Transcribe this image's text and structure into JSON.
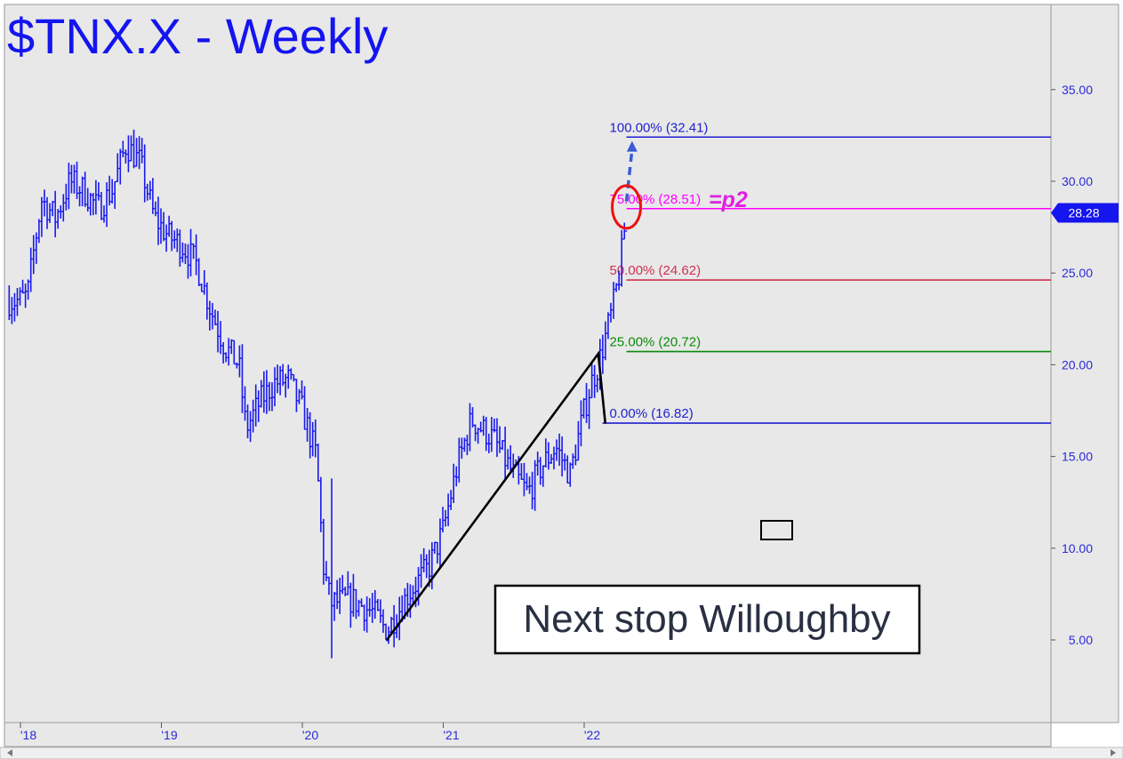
{
  "window": {
    "title": "$TNX.X - Weekly"
  },
  "colors": {
    "background": "#e8e8e8",
    "bars": "#1a1aee",
    "title": "#1414f0",
    "axis_text": "#2a2ad8",
    "fib_100": "#1f1fd0",
    "fib_75": "#ff00ff",
    "fib_50": "#d03050",
    "fib_25": "#0a8a0a",
    "fib_0": "#1f1fd0",
    "price_tag": "#1515ee",
    "annotation_red": "#ee1010",
    "arrow": "#3a5ad8",
    "p2": "#e020e0",
    "note_text": "#2a3042"
  },
  "chart_data": {
    "type": "ohlc-bar",
    "title": "$TNX.X - Weekly",
    "frequency": "weekly",
    "ylim": [
      0,
      39
    ],
    "y_ticks": [
      5,
      10,
      15,
      20,
      25,
      30,
      35
    ],
    "y_tick_labels": [
      "5.00",
      "10.00",
      "15.00",
      "20.00",
      "25.00",
      "30.00",
      "35.00"
    ],
    "x_ticks": [
      "'18",
      "'19",
      "'20",
      "'21",
      "'22"
    ],
    "last_price": 28.28,
    "last_price_label": "28.28",
    "series_anchors": [
      {
        "x": 2018.0,
        "y": 23.5
      },
      {
        "x": 2018.05,
        "y": 23.8
      },
      {
        "x": 2018.1,
        "y": 26.5
      },
      {
        "x": 2018.15,
        "y": 29.0
      },
      {
        "x": 2018.25,
        "y": 28.0
      },
      {
        "x": 2018.35,
        "y": 30.0
      },
      {
        "x": 2018.45,
        "y": 29.5
      },
      {
        "x": 2018.55,
        "y": 28.5
      },
      {
        "x": 2018.65,
        "y": 29.5
      },
      {
        "x": 2018.75,
        "y": 32.0
      },
      {
        "x": 2018.85,
        "y": 31.0
      },
      {
        "x": 2018.95,
        "y": 28.0
      },
      {
        "x": 2019.05,
        "y": 27.0
      },
      {
        "x": 2019.15,
        "y": 26.5
      },
      {
        "x": 2019.25,
        "y": 25.5
      },
      {
        "x": 2019.35,
        "y": 23.0
      },
      {
        "x": 2019.45,
        "y": 21.0
      },
      {
        "x": 2019.55,
        "y": 20.0
      },
      {
        "x": 2019.6,
        "y": 16.5
      },
      {
        "x": 2019.7,
        "y": 18.0
      },
      {
        "x": 2019.8,
        "y": 19.0
      },
      {
        "x": 2019.9,
        "y": 19.2
      },
      {
        "x": 2020.0,
        "y": 17.5
      },
      {
        "x": 2020.1,
        "y": 15.0
      },
      {
        "x": 2020.15,
        "y": 9.0
      },
      {
        "x": 2020.2,
        "y": 7.0
      },
      {
        "x": 2020.35,
        "y": 7.2
      },
      {
        "x": 2020.5,
        "y": 6.5
      },
      {
        "x": 2020.6,
        "y": 5.5
      },
      {
        "x": 2020.75,
        "y": 7.5
      },
      {
        "x": 2020.9,
        "y": 9.0
      },
      {
        "x": 2021.0,
        "y": 11.0
      },
      {
        "x": 2021.1,
        "y": 14.5
      },
      {
        "x": 2021.2,
        "y": 17.0
      },
      {
        "x": 2021.35,
        "y": 16.0
      },
      {
        "x": 2021.5,
        "y": 14.0
      },
      {
        "x": 2021.6,
        "y": 13.0
      },
      {
        "x": 2021.7,
        "y": 14.5
      },
      {
        "x": 2021.8,
        "y": 15.5
      },
      {
        "x": 2021.9,
        "y": 14.0
      },
      {
        "x": 2022.0,
        "y": 17.5
      },
      {
        "x": 2022.05,
        "y": 19.0
      },
      {
        "x": 2022.1,
        "y": 20.0
      },
      {
        "x": 2022.2,
        "y": 23.0
      },
      {
        "x": 2022.25,
        "y": 25.0
      },
      {
        "x": 2022.3,
        "y": 28.28
      }
    ],
    "extremes": {
      "high_2018": 32.5,
      "covid_low": 4.0,
      "swing_low_2020": 5.0,
      "swing_high_2022": 20.6,
      "swing_low_2022": 16.8
    },
    "abc_pattern": [
      {
        "x": 2020.6,
        "y": 5.0
      },
      {
        "x": 2022.1,
        "y": 20.6
      },
      {
        "x": 2022.15,
        "y": 16.8
      }
    ],
    "fib_levels": [
      {
        "label": "100.00% (32.41)",
        "value": 32.41,
        "color_key": "fib_100"
      },
      {
        "label": "75.00% (28.51)",
        "value": 28.51,
        "color_key": "fib_75"
      },
      {
        "label": "50.00% (24.62)",
        "value": 24.62,
        "color_key": "fib_50"
      },
      {
        "label": "25.00% (20.72)",
        "value": 20.72,
        "color_key": "fib_25"
      },
      {
        "label": "0.00% (16.82)",
        "value": 16.82,
        "color_key": "fib_0"
      }
    ],
    "target_arrow": {
      "from": {
        "x": 2022.3,
        "y": 28.9
      },
      "to": {
        "x": 2022.34,
        "y": 32.2
      }
    },
    "circled_point": {
      "x": 2022.3,
      "y": 28.6
    },
    "annotations": {
      "p2_label": "=p2",
      "callout_text": "Next stop Willoughby"
    }
  }
}
